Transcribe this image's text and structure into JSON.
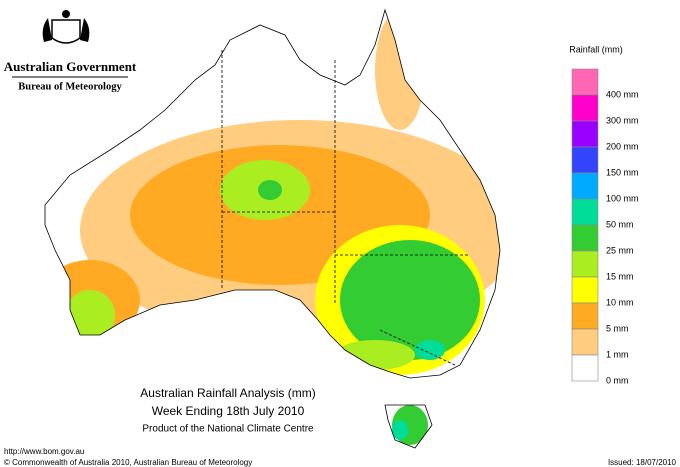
{
  "header": {
    "government": "Australian Government",
    "bureau": "Bureau of Meteorology"
  },
  "legend": {
    "title": "Rainfall (mm)",
    "items": [
      {
        "label": "400 mm",
        "color": "#ff66b3"
      },
      {
        "label": "300 mm",
        "color": "#ff00cc"
      },
      {
        "label": "200 mm",
        "color": "#9900ff"
      },
      {
        "label": "150 mm",
        "color": "#3344ff"
      },
      {
        "label": "100 mm",
        "color": "#00aaff"
      },
      {
        "label": "50 mm",
        "color": "#00dd99"
      },
      {
        "label": "25 mm",
        "color": "#33cc33"
      },
      {
        "label": "15 mm",
        "color": "#aaee22"
      },
      {
        "label": "10 mm",
        "color": "#ffff00"
      },
      {
        "label": "5 mm",
        "color": "#ffaa22"
      },
      {
        "label": "1 mm",
        "color": "#ffcc80"
      },
      {
        "label": "0 mm",
        "color": "#ffffff"
      }
    ]
  },
  "map": {
    "title": "Australian Rainfall Analysis (mm)",
    "subtitle": "Week Ending 18th July 2010",
    "credit": "Product of the National Climate Centre"
  },
  "footer": {
    "url": "http://www.bom.gov.au",
    "copyright": "© Commonwealth of Australia 2010, Australian Bureau of Meteorology",
    "issued": "Issued: 18/07/2010"
  }
}
